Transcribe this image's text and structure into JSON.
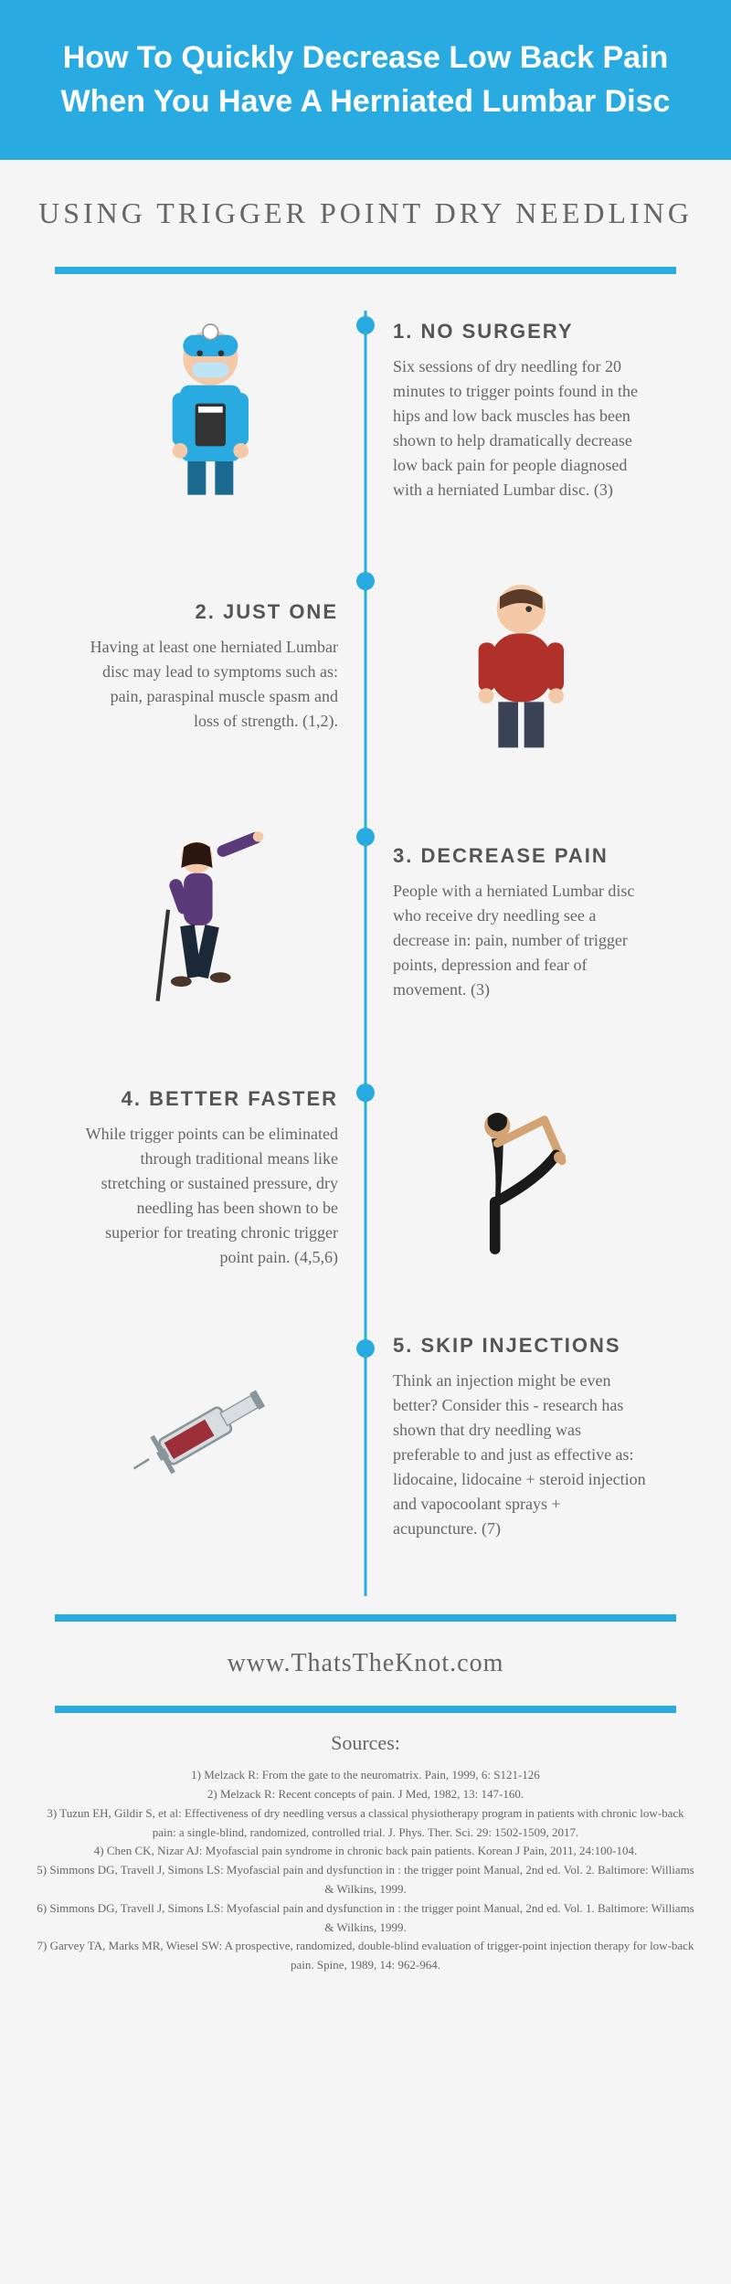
{
  "colors": {
    "accent": "#29abe2",
    "bg": "#f5f5f5",
    "text": "#666666",
    "heading": "#555555"
  },
  "header": {
    "title": "How To Quickly Decrease Low Back Pain When You Have A Herniated Lumbar Disc"
  },
  "subtitle": "USING TRIGGER POINT DRY NEEDLING",
  "items": [
    {
      "title": "1. NO SURGERY",
      "body": "Six sessions of dry needling for 20 minutes to trigger points found in the hips and low back muscles has been shown to help dramatically decrease low back pain for people diagnosed with a herniated Lumbar disc. (3)",
      "icon": "surgeon",
      "text_side": "right"
    },
    {
      "title": "2. JUST ONE",
      "body": "Having at least one herniated Lumbar disc may lead to symptoms such as: pain, paraspinal muscle spasm and loss of strength. (1,2).",
      "icon": "person-red",
      "text_side": "left"
    },
    {
      "title": "3. DECREASE PAIN",
      "body": "People with a herniated Lumbar disc who receive dry needling see a decrease in: pain, number of trigger points, depression and fear of movement. (3)",
      "icon": "hiker",
      "text_side": "right"
    },
    {
      "title": "4. BETTER FASTER",
      "body": "While trigger points can be eliminated through traditional means like stretching or sustained pressure, dry needling has been shown to be superior for treating chronic trigger point pain. (4,5,6)",
      "icon": "yoga",
      "text_side": "left"
    },
    {
      "title": "5. SKIP INJECTIONS",
      "body": "Think an injection might be even better?  Consider this - research has shown that dry needling was preferable to and just as effective as: lidocaine, lidocaine + steroid injection and vapocoolant sprays + acupuncture. (7)",
      "icon": "syringe",
      "text_side": "right"
    }
  ],
  "url": "www.ThatsTheKnot.com",
  "sources_title": "Sources:",
  "sources": [
    "1) Melzack R: From the gate to the neuromatrix. Pain, 1999, 6: S121-126",
    "2) Melzack R: Recent concepts of pain. J Med, 1982, 13: 147-160.",
    "3) Tuzun EH, Gildir S, et al: Effectiveness of dry needling versus a classical physiotherapy program in patients with chronic low-back pain: a single-blind, randomized, controlled trial. J. Phys. Ther. Sci. 29: 1502-1509, 2017.",
    "4) Chen CK, Nizar AJ: Myofascial pain syndrome in chronic back pain patients. Korean J Pain, 2011, 24:100-104.",
    "5) Simmons DG, Travell J, Simons LS: Myofascial pain and dysfunction in : the trigger point Manual, 2nd ed. Vol. 2. Baltimore: Williams & Wilkins, 1999.",
    "6) Simmons DG, Travell J, Simons LS: Myofascial pain and dysfunction in : the trigger point Manual, 2nd ed. Vol. 1. Baltimore: Williams & Wilkins, 1999.",
    "7) Garvey TA, Marks MR, Wiesel SW: A prospective, randomized, double-blind evaluation of trigger-point injection therapy for low-back pain. Spine, 1989, 14: 962-964."
  ],
  "icon_svgs": {
    "surgeon": "<svg viewBox='0 0 100 120'><circle cx='50' cy='25' r='18' fill='#f4c9a8'/><rect x='32' y='10' width='36' height='14' rx='7' fill='#29abe2'/><circle cx='50' cy='8' r='5' fill='#fff' stroke='#999'/><rect x='38' y='28' width='24' height='10' rx='5' fill='#bde4f4'/><circle cx='43' cy='22' r='2' fill='#333'/><circle cx='57' cy='22' r='2' fill='#333'/><rect x='30' y='43' width='40' height='50' rx='6' fill='#29abe2'/><rect x='40' y='55' width='20' height='28' fill='#333' rx='2'/><rect x='42' y='57' width='16' height='4' fill='#fff'/><rect x='25' y='48' width='10' height='35' rx='5' fill='#29abe2'/><rect x='65' y='48' width='10' height='35' rx='5' fill='#29abe2'/><circle cx='30' cy='86' r='5' fill='#f4c9a8'/><circle cx='70' cy='86' r='5' fill='#f4c9a8'/><rect x='35' y='93' width='12' height='22' fill='#1a6b8f'/><rect x='53' y='93' width='12' height='22' fill='#1a6b8f'/></svg>",
    "person-red": "<svg viewBox='0 0 100 120'><circle cx='50' cy='22' r='16' fill='#f4c9a8'/><path d='M36 14 Q50 4 64 14 L64 22 Q50 14 36 22 Z' fill='#5a3a28'/><circle cx='55' cy='22' r='2' fill='#333'/><rect x='30' y='38' width='40' height='45' rx='18' fill='#b0302a'/><rect x='22' y='44' width='11' height='32' rx='5' fill='#b0302a'/><rect x='67' y='44' width='11' height='32' rx='5' fill='#b0302a'/><circle cx='27' cy='79' r='5' fill='#f4c9a8'/><circle cx='73' cy='79' r='5' fill='#f4c9a8'/><rect x='35' y='83' width='13' height='30' fill='#3a4256'/><rect x='52' y='83' width='13' height='30' fill='#3a4256'/></svg>",
    "hiker": "<svg viewBox='0 0 120 140'><circle cx='50' cy='20' r='12' fill='#f4c9a8'/><path d='M40 12 Q50 5 60 12 L62 28 Q50 22 38 28 Z' fill='#2a1810'/><rect x='40' y='32' width='22' height='40' rx='8' fill='#5b3a7a'/><rect x='32' y='36' width='10' height='28' rx='5' fill='#5b3a7a' transform='rotate(-20 37 50)'/><line x1='70' y1='15' x2='95' y2='5' stroke='#5b3a7a' stroke-width='9' stroke-linecap='round'/><circle cx='97' cy='4' r='4' fill='#f4c9a8'/><line x1='28' y1='60' x2='20' y2='130' stroke='#333' stroke-width='3'/><rect x='40' y='72' width='11' height='40' fill='#1a2838' transform='rotate(-8 45 92)'/><rect x='52' y='72' width='11' height='40' fill='#1a2838' transform='rotate(12 57 92)'/><ellipse cx='38' cy='115' rx='8' ry='4' fill='#4a3528'/><ellipse cx='68' cy='112' rx='8' ry='4' fill='#4a3528'/></svg>",
    "yoga": "<svg viewBox='0 0 140 140'><circle cx='50' cy='25' r='11' fill='#d4a373'/><path d='M42 18 Q50 10 58 18 Q60 28 50 30 Q40 28 42 18' fill='#1a1a1a'/><path d='M45 36 Q50 60 48 90 L52 90 Q55 60 55 36 Z' fill='#1a1a1a'/><line x1='50' y1='40' x2='90' y2='20' stroke='#d4a373' stroke-width='7' stroke-linecap='round'/><line x1='90' y1='20' x2='105' y2='55' stroke='#d4a373' stroke-width='7' stroke-linecap='round'/><line x1='48' y1='90' x2='48' y2='130' stroke='#1a1a1a' stroke-width='9' stroke-linecap='round'/><path d='M52 88 Q85 70 100 50' stroke='#1a1a1a' stroke-width='9' fill='none' stroke-linecap='round'/><circle cx='103' cy='52' r='5' fill='#d4a373'/></svg>",
    "syringe": "<svg viewBox='0 0 140 140'><rect x='30' y='50' width='60' height='24' rx='4' fill='#d8dde0' stroke='#8a9599' stroke-width='2' transform='rotate(-30 70 70)'/><rect x='34' y='54' width='40' height='16' fill='#9b2f3a' transform='rotate(-30 70 70)'/><rect x='88' y='56' width='30' height='12' fill='#d8dde0' stroke='#8a9599' transform='rotate(-30 70 70)'/><rect x='118' y='54' width='6' height='16' fill='#8a9599' transform='rotate(-30 70 70)'/><rect x='24' y='58' width='8' height='8' fill='#8a9599' transform='rotate(-30 70 70)'/><line x1='18' y1='88' x2='5' y2='96' stroke='#8a9599' stroke-width='2' /><rect x='26' y='44' width='4' height='36' fill='#8a9599' transform='rotate(-30 70 70)'/></svg>"
  }
}
